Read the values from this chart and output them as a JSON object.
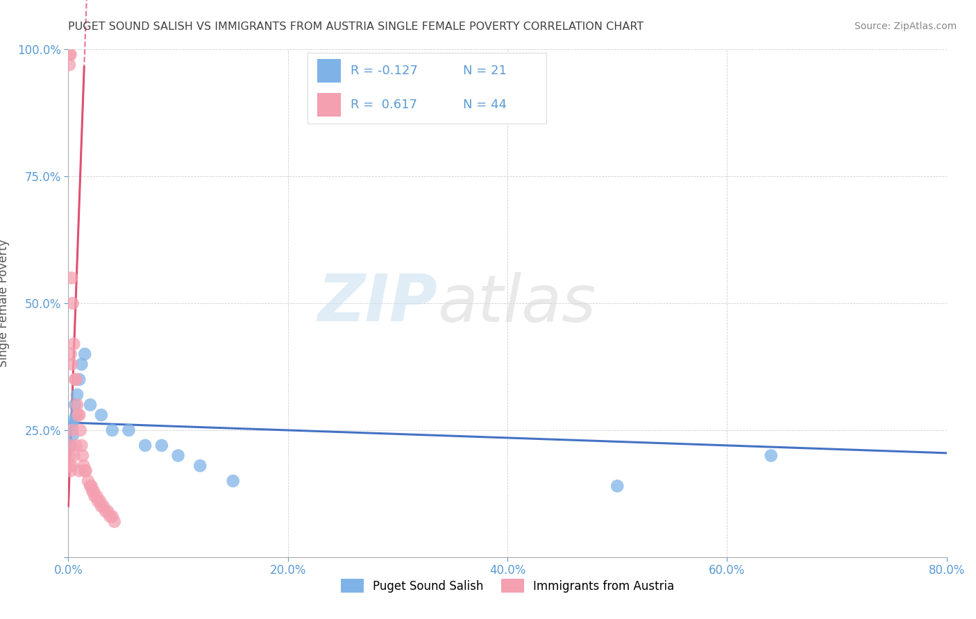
{
  "title": "PUGET SOUND SALISH VS IMMIGRANTS FROM AUSTRIA SINGLE FEMALE POVERTY CORRELATION CHART",
  "source": "Source: ZipAtlas.com",
  "ylabel": "Single Female Poverty",
  "series1_label": "Puget Sound Salish",
  "series2_label": "Immigrants from Austria",
  "series1_color": "#7fb3e8",
  "series2_color": "#f4a0b0",
  "line1_color": "#4472c4",
  "line2_color": "#e05070",
  "series1_r": -0.127,
  "series1_n": 21,
  "series2_r": 0.617,
  "series2_n": 44,
  "xlim": [
    0.0,
    0.8
  ],
  "ylim": [
    0.0,
    1.0
  ],
  "background_color": "#ffffff",
  "title_color": "#404040",
  "tick_color": "#5b9bd5",
  "watermark_text": "ZIPatlas",
  "blue_x": [
    0.002,
    0.003,
    0.004,
    0.005,
    0.006,
    0.007,
    0.008,
    0.01,
    0.012,
    0.015,
    0.02,
    0.03,
    0.04,
    0.055,
    0.07,
    0.085,
    0.1,
    0.12,
    0.15,
    0.5,
    0.64
  ],
  "blue_y": [
    0.22,
    0.26,
    0.24,
    0.27,
    0.3,
    0.28,
    0.32,
    0.35,
    0.38,
    0.4,
    0.3,
    0.28,
    0.25,
    0.25,
    0.22,
    0.22,
    0.2,
    0.18,
    0.15,
    0.14,
    0.2
  ],
  "pink_x": [
    0.001,
    0.001,
    0.001,
    0.001,
    0.002,
    0.002,
    0.002,
    0.002,
    0.003,
    0.003,
    0.003,
    0.004,
    0.004,
    0.005,
    0.005,
    0.006,
    0.007,
    0.007,
    0.008,
    0.009,
    0.01,
    0.01,
    0.011,
    0.012,
    0.013,
    0.014,
    0.015,
    0.016,
    0.018,
    0.02,
    0.021,
    0.022,
    0.023,
    0.024,
    0.026,
    0.027,
    0.029,
    0.03,
    0.032,
    0.034,
    0.036,
    0.038,
    0.04,
    0.042
  ],
  "pink_y": [
    0.99,
    0.97,
    0.2,
    0.18,
    0.99,
    0.4,
    0.22,
    0.17,
    0.55,
    0.38,
    0.18,
    0.5,
    0.25,
    0.42,
    0.2,
    0.35,
    0.35,
    0.22,
    0.3,
    0.28,
    0.28,
    0.17,
    0.25,
    0.22,
    0.2,
    0.18,
    0.17,
    0.17,
    0.15,
    0.14,
    0.14,
    0.13,
    0.13,
    0.12,
    0.12,
    0.11,
    0.11,
    0.1,
    0.1,
    0.09,
    0.09,
    0.08,
    0.08,
    0.07
  ]
}
